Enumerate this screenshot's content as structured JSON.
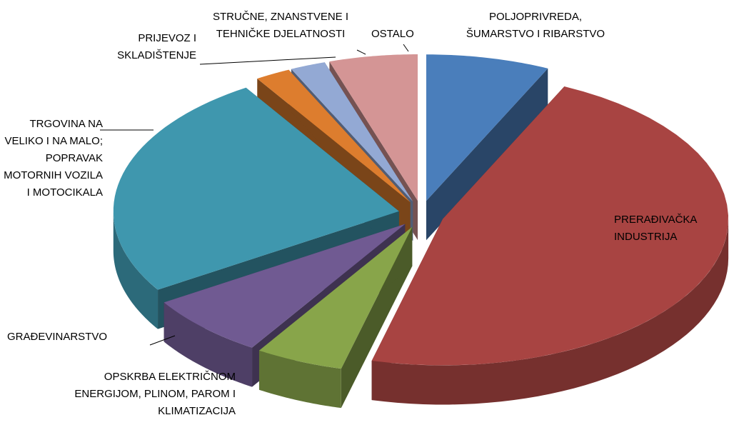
{
  "chart_data": {
    "type": "pie3d",
    "categories": [
      "POLJOPRIVREDA, ŠUMARSTVO I RIBARSTVO",
      "PRERAĐIVAČKA INDUSTRIJA",
      "OPSKRBA ELEKTRIČNOM ENERGIJOM, PLINOM, PAROM I KLIMATIZACIJA",
      "GRAĐEVINARSTVO",
      "TRGOVINA NA VELIKO I NA MALO; POPRAVAK MOTORNIH VOZILA I MOTOCIKALA",
      "PRIJEVOZ I SKLADIŠTENJE",
      "STRUČNE, ZNANSTVENE I TEHNIČKE DJELATNOSTI",
      "OSTALO"
    ],
    "values": [
      7,
      47,
      5,
      7,
      25,
      2,
      2,
      5
    ],
    "colors": [
      "#4a7ebb",
      "#a84442",
      "#88a54a",
      "#705a92",
      "#3f97ae",
      "#dd7d2e",
      "#93a9d4",
      "#d49595"
    ]
  }
}
